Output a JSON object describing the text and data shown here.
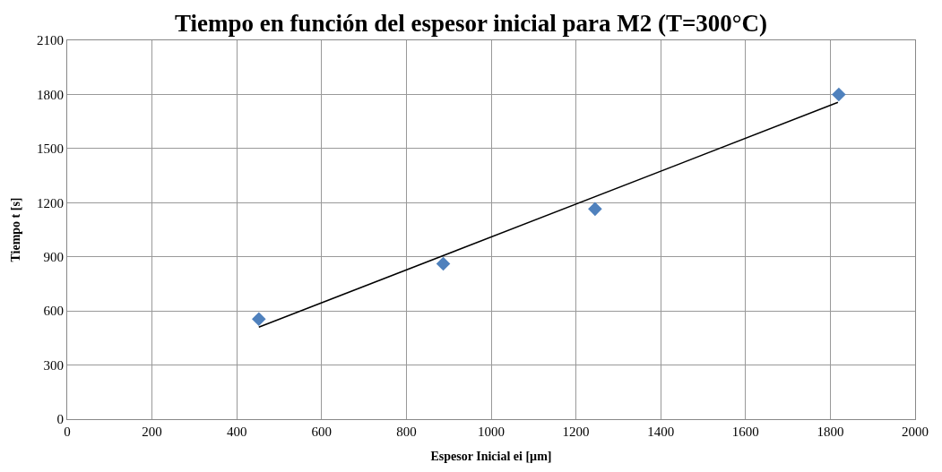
{
  "chart_data": {
    "type": "scatter",
    "title": "Tiempo en función del espesor inicial para M2 (T=300°C)",
    "xlabel": "Espesor Inicial ei [µm]",
    "ylabel": "Tiempo t [s]",
    "series": [
      {
        "color": "#4f81bd",
        "x": [
          452,
          887,
          1245,
          1820
        ],
        "values": [
          555,
          861,
          1165,
          1800
        ],
        "marker": "diamond"
      },
      {
        "type": "line",
        "color": "#000000",
        "x": [
          452,
          1818
        ],
        "values": [
          510,
          1756
        ],
        "marker": "none"
      }
    ],
    "xlim": [
      0,
      2000
    ],
    "xticks": [
      0,
      200,
      400,
      600,
      800,
      1000,
      1200,
      1400,
      1600,
      1800,
      2000
    ],
    "ylim": [
      0,
      2100
    ],
    "yticks": [
      0,
      300,
      600,
      900,
      1200,
      1500,
      1800,
      2100
    ],
    "grid": true,
    "legend": false
  }
}
